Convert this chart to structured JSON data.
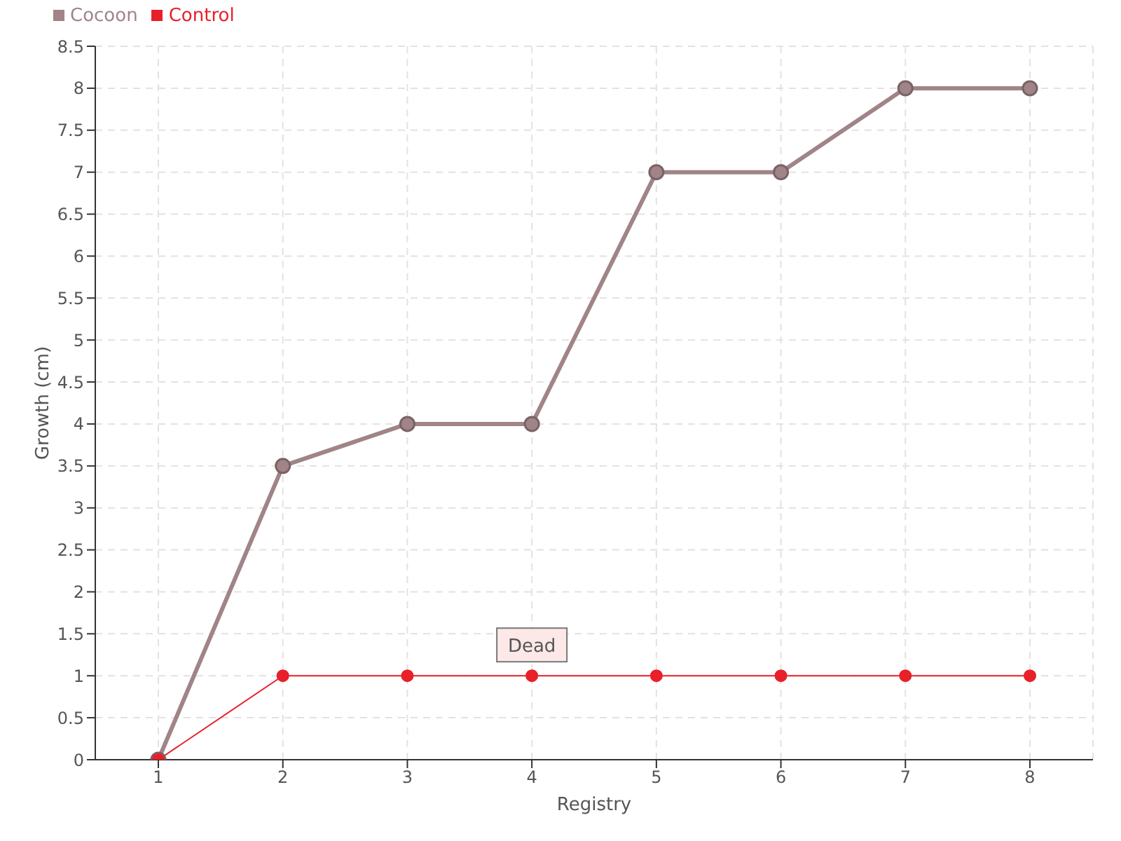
{
  "chart_data": {
    "type": "line",
    "xlabel": "Registry",
    "ylabel": "Growth (cm)",
    "categories": [
      "1",
      "2",
      "3",
      "4",
      "5",
      "6",
      "7",
      "8"
    ],
    "series": [
      {
        "name": "Cocoon",
        "color": "#a08488",
        "values": [
          0,
          3.5,
          4,
          4,
          7,
          7,
          8,
          8
        ]
      },
      {
        "name": "Control",
        "color": "#e8202a",
        "values": [
          0,
          1,
          1,
          1,
          1,
          1,
          1,
          1
        ]
      }
    ],
    "ylim": [
      0,
      8.5
    ],
    "yticks": [
      0,
      0.5,
      1,
      1.5,
      2,
      2.5,
      3,
      3.5,
      4,
      4.5,
      5,
      5.5,
      6,
      6.5,
      7,
      7.5,
      8,
      8.5
    ],
    "annotations": [
      {
        "text": "Dead",
        "x": "4",
        "y": 1
      }
    ],
    "grid": true,
    "legend": "top left",
    "marker": "circle",
    "line_style": "solid"
  }
}
